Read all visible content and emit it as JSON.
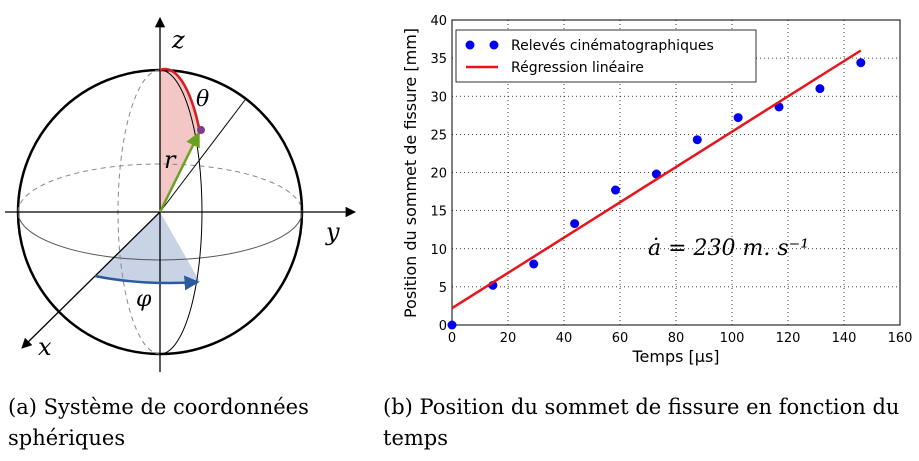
{
  "diagram": {
    "labels": {
      "z": "z",
      "y": "y",
      "x": "x",
      "theta": "θ",
      "r": "r",
      "phi": "φ"
    },
    "caption": "(a) Système de coordonnées sphériques"
  },
  "chart_data": {
    "type": "scatter",
    "caption": "(b) Position du sommet de fissure en fonction du temps",
    "x_label": "Temps [μs]",
    "y_label": "Position du sommet de fissure [mm]",
    "xlim": [
      0,
      160
    ],
    "ylim": [
      0,
      40
    ],
    "xticks": [
      0,
      20,
      40,
      60,
      80,
      100,
      120,
      140,
      160
    ],
    "yticks": [
      0,
      5,
      10,
      15,
      20,
      25,
      30,
      35,
      40
    ],
    "grid": true,
    "legend": "upper left",
    "annotation": "ȧ = 230 m. s⁻¹",
    "series": [
      {
        "name": "Relevés cinématographiques",
        "type": "scatter",
        "color": "#0000ee",
        "x": [
          0,
          14.6,
          29.2,
          43.8,
          58.4,
          73,
          87.6,
          102.2,
          116.8,
          131.4,
          146
        ],
        "values": [
          0,
          5.2,
          8,
          13.3,
          17.7,
          19.8,
          24.3,
          27.2,
          28.6,
          31,
          34.4
        ]
      },
      {
        "name": "Régression linéaire",
        "type": "line",
        "color": "#e8141c",
        "x": [
          0,
          146
        ],
        "values": [
          2.2,
          36
        ]
      }
    ]
  }
}
